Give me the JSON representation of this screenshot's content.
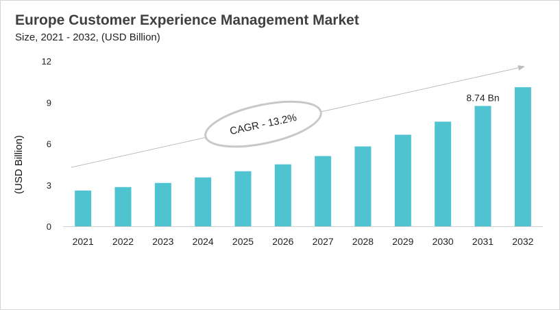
{
  "chart_data": {
    "type": "bar",
    "title": "Europe Customer Experience Management Market",
    "subtitle": "Size, 2021 - 2032, (USD Billion)",
    "ylabel": "(USD Billion)",
    "xlabel": "",
    "categories": [
      "2021",
      "2022",
      "2023",
      "2024",
      "2025",
      "2026",
      "2027",
      "2028",
      "2029",
      "2030",
      "2031",
      "2032"
    ],
    "values": [
      2.6,
      2.85,
      3.15,
      3.55,
      4.0,
      4.5,
      5.1,
      5.8,
      6.65,
      7.6,
      8.74,
      10.1
    ],
    "ylim": [
      0,
      12
    ],
    "yticks": [
      "0",
      "3",
      "6",
      "9",
      "12"
    ],
    "bar_color": "#4fc3cf",
    "grid": false,
    "annotations": {
      "data_label": {
        "index": 10,
        "text": "8.74 Bn"
      },
      "cagr_label": "CAGR - 13.2%"
    }
  }
}
